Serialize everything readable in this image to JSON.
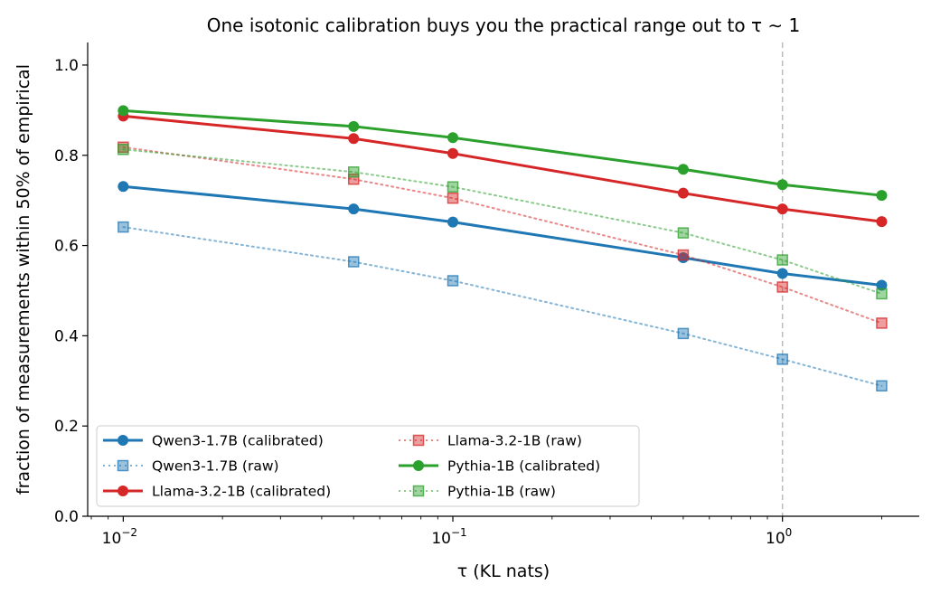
{
  "chart_data": {
    "type": "line",
    "title": "One isotonic calibration buys you the practical range out to τ ∼ 1",
    "xlabel": "τ (KL nats)",
    "ylabel": "fraction of measurements within 50% of empirical",
    "x_scale": "log",
    "xlim": [
      0.0078,
      2.6
    ],
    "ylim": [
      0.0,
      1.05
    ],
    "x_ticks": [
      {
        "value": 0.01,
        "base": "10",
        "exp": "−2"
      },
      {
        "value": 0.1,
        "base": "10",
        "exp": "−1"
      },
      {
        "value": 1.0,
        "base": "10",
        "exp": "0"
      }
    ],
    "y_ticks": [
      {
        "value": 0.0,
        "label": "0.0"
      },
      {
        "value": 0.2,
        "label": "0.2"
      },
      {
        "value": 0.4,
        "label": "0.4"
      },
      {
        "value": 0.6,
        "label": "0.6"
      },
      {
        "value": 0.8,
        "label": "0.8"
      },
      {
        "value": 1.0,
        "label": "1.0"
      }
    ],
    "x": [
      0.01,
      0.05,
      0.1,
      0.5,
      1.0,
      2.0
    ],
    "vline": {
      "x": 1.0,
      "style": "dashed",
      "color": "#bbbbbb"
    },
    "grid": false,
    "legend_position": "lower-left",
    "legend_columns": 2,
    "series": [
      {
        "name": "Qwen3-1.7B (calibrated)",
        "color": "#1f77b4",
        "style": "solid",
        "marker": "circle",
        "values": [
          0.731,
          0.681,
          0.652,
          0.573,
          0.538,
          0.512
        ]
      },
      {
        "name": "Qwen3-1.7B (raw)",
        "color": "#1f77b4",
        "style": "dotted",
        "marker": "square",
        "values": [
          0.641,
          0.564,
          0.522,
          0.405,
          0.348,
          0.289
        ]
      },
      {
        "name": "Llama-3.2-1B (calibrated)",
        "color": "#d62728",
        "style": "solid",
        "marker": "circle",
        "values": [
          0.887,
          0.837,
          0.804,
          0.716,
          0.681,
          0.653
        ]
      },
      {
        "name": "Llama-3.2-1B (raw)",
        "color": "#d62728",
        "style": "dotted",
        "marker": "square",
        "values": [
          0.818,
          0.747,
          0.705,
          0.579,
          0.508,
          0.428
        ]
      },
      {
        "name": "Pythia-1B (calibrated)",
        "color": "#2ca02c",
        "style": "solid",
        "marker": "circle",
        "values": [
          0.899,
          0.864,
          0.839,
          0.769,
          0.735,
          0.711
        ]
      },
      {
        "name": "Pythia-1B (raw)",
        "color": "#2ca02c",
        "style": "dotted",
        "marker": "square",
        "values": [
          0.813,
          0.763,
          0.73,
          0.628,
          0.568,
          0.493
        ]
      }
    ]
  }
}
